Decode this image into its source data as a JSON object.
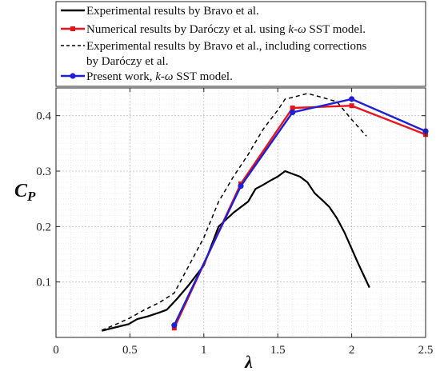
{
  "chart_data": {
    "type": "line",
    "xlabel": "λ",
    "ylabel_main": "C",
    "ylabel_sub": "P",
    "xlim": [
      0,
      2.5
    ],
    "ylim": [
      0,
      0.45
    ],
    "xticks": [
      0,
      0.5,
      1,
      1.5,
      2,
      2.5
    ],
    "xtick_labels": [
      "0",
      "0.5",
      "1",
      "1.5",
      "2",
      "2.5"
    ],
    "yticks": [
      0.1,
      0.2,
      0.3,
      0.4
    ],
    "ytick_labels": [
      "0.1",
      "0.2",
      "0.3",
      "0.4"
    ],
    "grid": true,
    "legend_position": "top",
    "legend": [
      {
        "series": 0,
        "lines": [
          "Experimental results by Bravo et al."
        ]
      },
      {
        "series": 1,
        "lines": [
          "Numerical results by Daróczy et al. using k-ω SST model."
        ]
      },
      {
        "series": 2,
        "lines": [
          "Experimental results by Bravo et al., including corrections",
          "by Daróczy et al."
        ]
      },
      {
        "series": 3,
        "lines": [
          "Present work,  k-ω SST model."
        ]
      }
    ],
    "series": [
      {
        "name": "Experimental results by Bravo et al.",
        "color": "#000000",
        "style": "solid",
        "marker": "none",
        "x": [
          0.31,
          0.4,
          0.49,
          0.55,
          0.62,
          0.7,
          0.75,
          0.82,
          0.9,
          1.0,
          1.1,
          1.2,
          1.3,
          1.35,
          1.4,
          1.45,
          1.5,
          1.55,
          1.6,
          1.65,
          1.7,
          1.75,
          1.8,
          1.85,
          1.9,
          1.95,
          2.0,
          2.05,
          2.12
        ],
        "y": [
          0.012,
          0.018,
          0.024,
          0.033,
          0.038,
          0.045,
          0.05,
          0.07,
          0.095,
          0.13,
          0.2,
          0.225,
          0.245,
          0.268,
          0.275,
          0.283,
          0.29,
          0.3,
          0.295,
          0.29,
          0.28,
          0.26,
          0.248,
          0.235,
          0.215,
          0.19,
          0.16,
          0.13,
          0.09
        ]
      },
      {
        "name": "Numerical results by Daróczy et al. using k-ω SST model.",
        "color": "#e8141c",
        "style": "solid",
        "marker": "square",
        "x": [
          0.8,
          1.25,
          1.6,
          2.0,
          2.5
        ],
        "y": [
          0.017,
          0.277,
          0.414,
          0.418,
          0.366
        ]
      },
      {
        "name": "Experimental results by Bravo et al., including corrections by Daróczy et al.",
        "color": "#000000",
        "style": "dashed",
        "marker": "none",
        "x": [
          0.31,
          0.4,
          0.5,
          0.6,
          0.7,
          0.8,
          0.9,
          1.0,
          1.1,
          1.2,
          1.3,
          1.4,
          1.5,
          1.55,
          1.6,
          1.7,
          1.8,
          1.9,
          2.0,
          2.1
        ],
        "y": [
          0.013,
          0.023,
          0.035,
          0.05,
          0.063,
          0.08,
          0.13,
          0.18,
          0.245,
          0.29,
          0.33,
          0.375,
          0.41,
          0.43,
          0.433,
          0.44,
          0.433,
          0.425,
          0.393,
          0.363
        ]
      },
      {
        "name": "Present work, k-ω SST model.",
        "color": "#1f1fd6",
        "style": "solid",
        "marker": "circle",
        "x": [
          0.8,
          1.25,
          1.6,
          2.0,
          2.5
        ],
        "y": [
          0.022,
          0.273,
          0.406,
          0.43,
          0.372
        ]
      }
    ]
  }
}
